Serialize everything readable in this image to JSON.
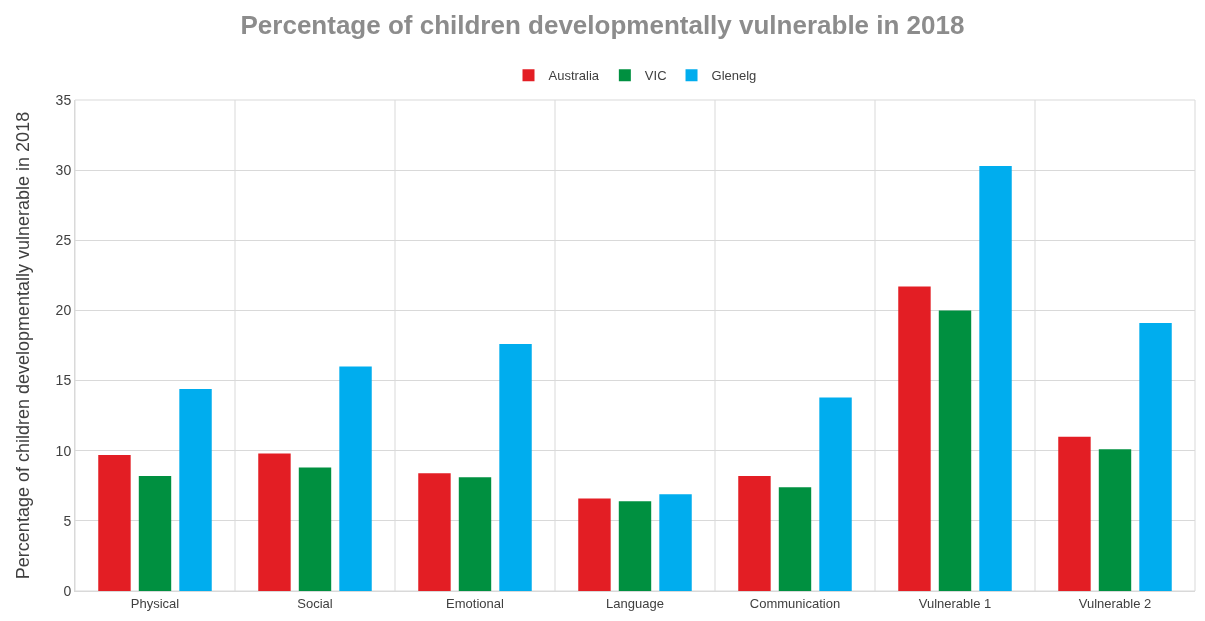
{
  "chart_data": {
    "type": "bar",
    "title": "Percentage of children developmentally vulnerable in 2018",
    "ylabel": "Percentage of children developmentally vulnerable in 2018",
    "categories": [
      "Physical",
      "Social",
      "Emotional",
      "Language",
      "Communication",
      "Vulnerable 1",
      "Vulnerable 2"
    ],
    "series": [
      {
        "name": "Australia",
        "color": "#e31e24",
        "values": [
          9.7,
          9.8,
          8.4,
          6.6,
          8.2,
          21.7,
          11.0
        ]
      },
      {
        "name": "VIC",
        "color": "#009040",
        "values": [
          8.2,
          8.8,
          8.1,
          6.4,
          7.4,
          20.0,
          10.1
        ]
      },
      {
        "name": "Glenelg",
        "color": "#00adee",
        "values": [
          14.4,
          16.0,
          17.6,
          6.9,
          13.8,
          30.3,
          19.1
        ]
      }
    ],
    "ylim": [
      0,
      35
    ],
    "yticks": [
      0,
      5,
      10,
      15,
      20,
      25,
      30,
      35
    ],
    "grid": true,
    "legend": "top"
  }
}
